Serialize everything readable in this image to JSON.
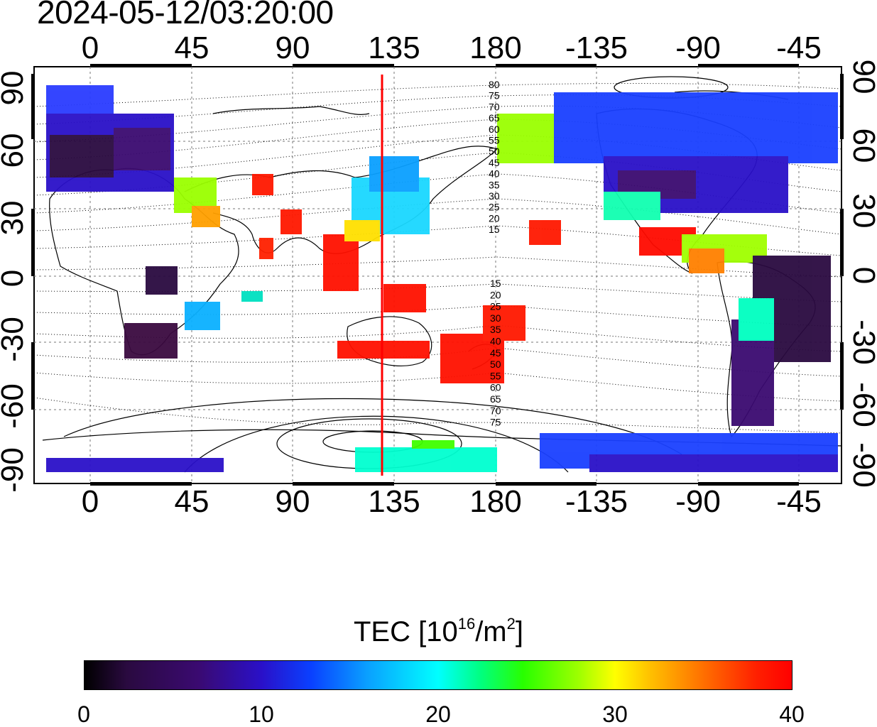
{
  "timestamp": "2024-05-12/03:20:00",
  "longitude_ticks": [
    "0",
    "45",
    "90",
    "135",
    "180",
    "-135",
    "-90",
    "-45"
  ],
  "latitude_ticks": [
    "90",
    "60",
    "30",
    "0",
    "-30",
    "-60",
    "-90"
  ],
  "contour_labels": {
    "north": [
      "80",
      "75",
      "70",
      "65",
      "60",
      "55",
      "50",
      "45",
      "40",
      "35",
      "30",
      "25",
      "20",
      "15"
    ],
    "south": [
      "15",
      "20",
      "25",
      "30",
      "35",
      "40",
      "45",
      "50",
      "55",
      "60",
      "65",
      "70",
      "75"
    ]
  },
  "highlight_line_longitude": 130,
  "highlight_line_color": "#ff0000",
  "colorbar": {
    "title_prefix": "TEC  [10",
    "title_exp": "16",
    "title_mid": "/m",
    "title_exp2": "2",
    "title_suffix": "]",
    "ticks": [
      "0",
      "10",
      "20",
      "30",
      "40"
    ],
    "min": 0,
    "max": 40
  }
}
